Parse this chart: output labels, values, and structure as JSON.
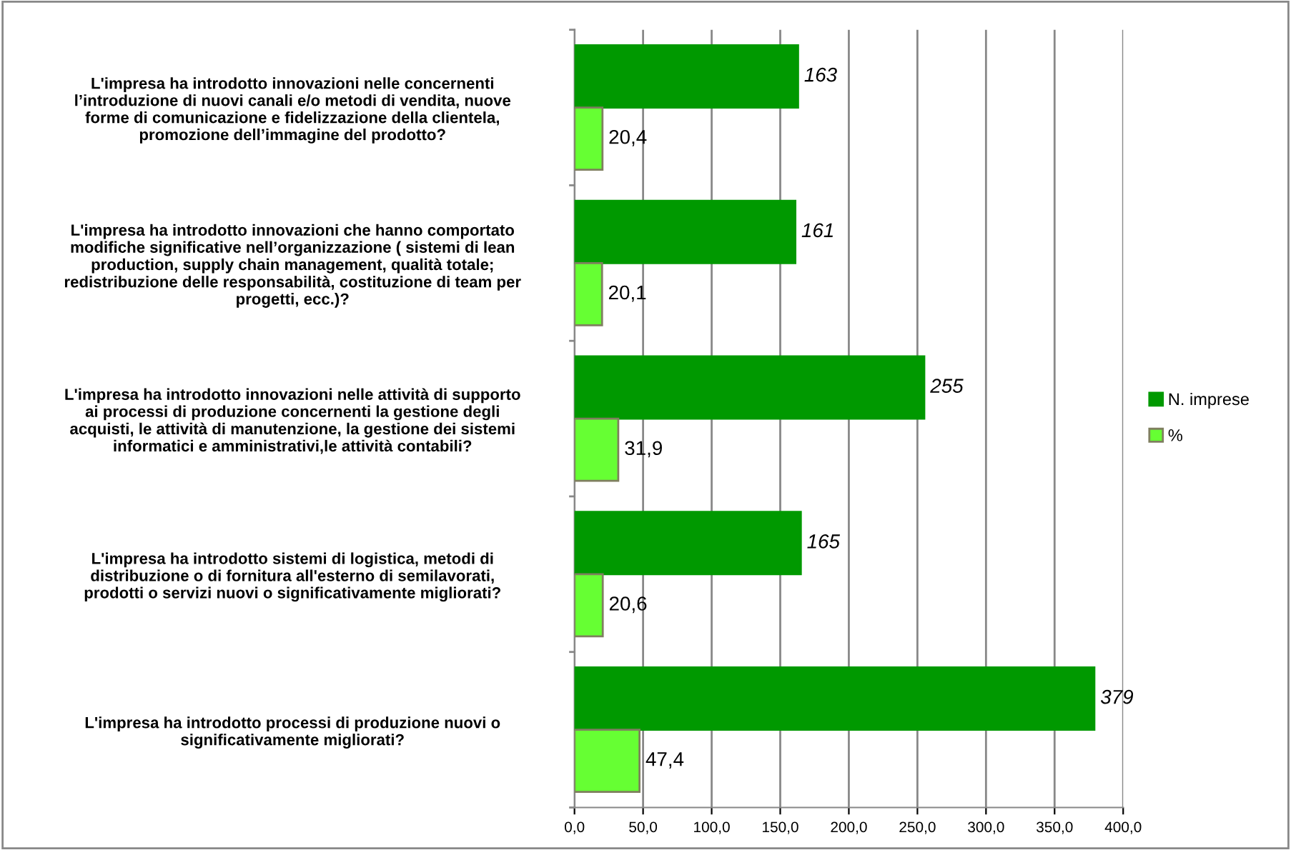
{
  "chart_data": {
    "type": "bar",
    "orientation": "horizontal",
    "categories": [
      "L'impresa ha introdotto innovazioni nelle concernenti\nl’introduzione di nuovi canali e/o metodi di vendita, nuove\nforme di comunicazione e fidelizzazione della clientela,\npromozione dell’immagine del prodotto?",
      "L'impresa ha introdotto innovazioni che hanno comportato\nmodifiche significative nell’organizzazione ( sistemi di lean\nproduction, supply chain management, qualità totale;\nredistribuzione delle responsabilità, costituzione di team per\nprogetti, ecc.)?",
      "L'impresa ha introdotto innovazioni nelle attività di supporto\nai processi di produzione concernenti la gestione degli\nacquisti, le attività di manutenzione, la gestione dei sistemi\ninformatici e amministrativi,le attività contabili?",
      "L'impresa ha introdotto sistemi di logistica, metodi di\ndistribuzione o di fornitura all'esterno di semilavorati,\nprodotti o servizi nuovi o significativamente migliorati?",
      "L'impresa ha introdotto processi di produzione nuovi o\nsignificativamente migliorati?"
    ],
    "series": [
      {
        "name": "N. imprese",
        "color": "#009900",
        "values": [
          163,
          161,
          255,
          165,
          379
        ],
        "value_labels": [
          "163",
          "161",
          "255",
          "165",
          "379"
        ]
      },
      {
        "name": "%",
        "color": "#66ff33",
        "values": [
          20.4,
          20.1,
          31.9,
          20.6,
          47.4
        ],
        "value_labels": [
          "20,4",
          "20,1",
          "31,9",
          "20,6",
          "47,4"
        ]
      }
    ],
    "xlim": [
      0,
      400
    ],
    "xticks": [
      {
        "value": 0,
        "label": "0,0"
      },
      {
        "value": 50,
        "label": "50,0"
      },
      {
        "value": 100,
        "label": "100,0"
      },
      {
        "value": 150,
        "label": "150,0"
      },
      {
        "value": 200,
        "label": "200,0"
      },
      {
        "value": 250,
        "label": "250,0"
      },
      {
        "value": 300,
        "label": "300,0"
      },
      {
        "value": 350,
        "label": "350,0"
      },
      {
        "value": 400,
        "label": "400,0"
      }
    ],
    "grid": "x",
    "legend": "right"
  }
}
